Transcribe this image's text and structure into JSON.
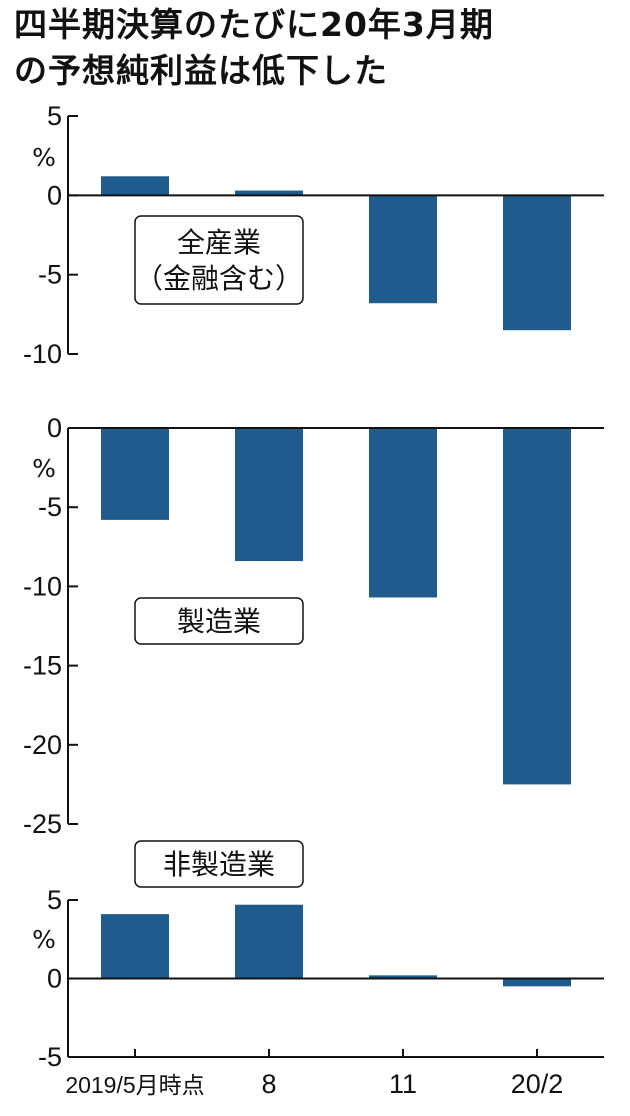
{
  "title_lines": [
    "四半期決算のたびに20年3月期",
    "の予想純利益は低下した"
  ],
  "colors": {
    "bar": "#1f5b8c",
    "axis": "#111111",
    "background": "#ffffff"
  },
  "chart_data": [
    {
      "type": "bar",
      "title": "全産業（金融含む）",
      "title_lines": [
        "全産業",
        "（金融含む）"
      ],
      "categories": [
        "2019/5月時点",
        "8",
        "11",
        "20/2"
      ],
      "values": [
        1.2,
        0.3,
        -6.8,
        -8.5
      ],
      "ylabel": "%",
      "ylim": [
        -10,
        5
      ],
      "yticks": [
        5,
        0,
        -5,
        -10
      ],
      "ytick_labels": [
        "5",
        "0",
        "-5",
        "-10"
      ],
      "grid": false,
      "legend": "none"
    },
    {
      "type": "bar",
      "title": "製造業",
      "title_lines": [
        "製造業"
      ],
      "categories": [
        "2019/5月時点",
        "8",
        "11",
        "20/2"
      ],
      "values": [
        -5.8,
        -8.4,
        -10.7,
        -22.5
      ],
      "ylabel": "%",
      "ylim": [
        -25,
        0
      ],
      "yticks": [
        0,
        -5,
        -10,
        -15,
        -20,
        -25
      ],
      "ytick_labels": [
        "0",
        "-5",
        "-10",
        "-15",
        "-20",
        "-25"
      ],
      "grid": false,
      "legend": "none"
    },
    {
      "type": "bar",
      "title": "非製造業",
      "title_lines": [
        "非製造業"
      ],
      "categories": [
        "2019/5月時点",
        "8",
        "11",
        "20/2"
      ],
      "values": [
        4.1,
        4.7,
        0.2,
        -0.5
      ],
      "ylabel": "%",
      "ylim": [
        -5,
        5
      ],
      "yticks": [
        5,
        0,
        -5
      ],
      "ytick_labels": [
        "5",
        "0",
        "-5"
      ],
      "grid": false,
      "legend": "none"
    }
  ]
}
